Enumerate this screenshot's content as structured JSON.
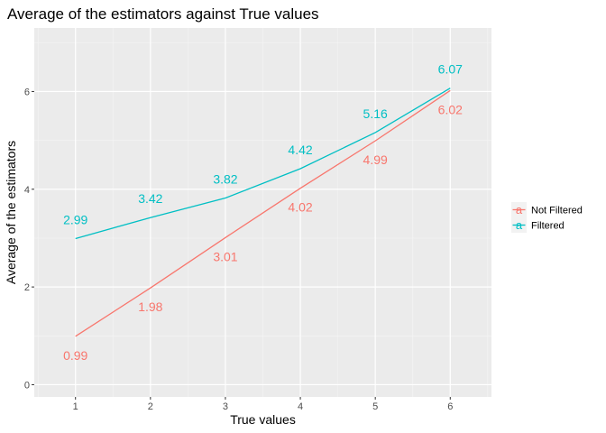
{
  "chart_data": {
    "type": "line",
    "title": "Average of the estimators against True values",
    "xlabel": "True values",
    "ylabel": "Average of the estimators",
    "x": [
      1,
      2,
      3,
      4,
      5,
      6
    ],
    "xticks": [
      "1",
      "2",
      "3",
      "4",
      "5",
      "6"
    ],
    "yticks": [
      "0",
      "2",
      "4",
      "6"
    ],
    "xlim": [
      0.45,
      6.55
    ],
    "ylim": [
      -0.25,
      7.3
    ],
    "grid": true,
    "legend_position": "right",
    "series": [
      {
        "name": "Not Filtered",
        "color": "#F8766D",
        "values": [
          0.99,
          1.98,
          3.01,
          4.02,
          4.99,
          6.02
        ],
        "labels": [
          "0.99",
          "1.98",
          "3.01",
          "4.02",
          "4.99",
          "6.02"
        ],
        "label_position": "below"
      },
      {
        "name": "Filtered",
        "color": "#00BFC4",
        "values": [
          2.99,
          3.42,
          3.82,
          4.42,
          5.16,
          6.07
        ],
        "labels": [
          "2.99",
          "3.42",
          "3.82",
          "4.42",
          "5.16",
          "6.07"
        ],
        "label_position": "above"
      }
    ]
  },
  "legend": {
    "key_glyph": "a",
    "items": [
      "Not Filtered",
      "Filtered"
    ]
  }
}
